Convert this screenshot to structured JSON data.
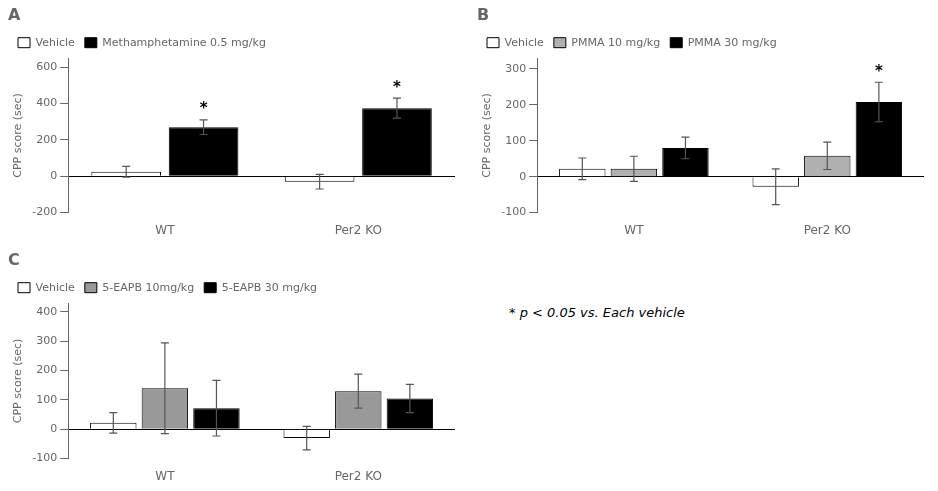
{
  "chart_data": [
    {
      "type": "bar",
      "title": "A",
      "ylabel": "CPP score (sec)",
      "categories": [
        "WT",
        "Per2 KO"
      ],
      "series": [
        {
          "name": "Vehicle",
          "color": "white",
          "values": [
            25,
            -30
          ],
          "errors": [
            30,
            40
          ]
        },
        {
          "name": "Methamphetamine 0.5 mg/kg",
          "color": "black",
          "values": [
            270,
            375
          ],
          "errors": [
            40,
            55
          ]
        }
      ],
      "annotations": [
        {
          "text": "*",
          "series": "Methamphetamine 0.5 mg/kg",
          "category": "WT"
        },
        {
          "text": "*",
          "series": "Methamphetamine 0.5 mg/kg",
          "category": "Per2 KO"
        }
      ],
      "ylim": [
        -200,
        650
      ],
      "yticks": [
        -200,
        0,
        200,
        400,
        600
      ],
      "grid": false,
      "legend": "upper left"
    },
    {
      "type": "bar",
      "title": "B",
      "ylabel": "CPP score (sec)",
      "categories": [
        "WT",
        "Per2 KO"
      ],
      "series": [
        {
          "name": "Vehicle",
          "color": "white",
          "values": [
            22,
            -28
          ],
          "errors": [
            30,
            50
          ]
        },
        {
          "name": "PMMA 10 mg/kg",
          "color": "#b0b0b0",
          "values": [
            22,
            58
          ],
          "errors": [
            35,
            38
          ]
        },
        {
          "name": "PMMA 30 mg/kg",
          "color": "black",
          "values": [
            80,
            208
          ],
          "errors": [
            30,
            55
          ]
        }
      ],
      "annotations": [
        {
          "text": "*",
          "series": "PMMA 30 mg/kg",
          "category": "Per2 KO"
        }
      ],
      "ylim": [
        -100,
        330
      ],
      "yticks": [
        -100,
        0,
        100,
        200,
        300
      ],
      "grid": false,
      "legend": "upper left"
    },
    {
      "type": "bar",
      "title": "C",
      "ylabel": "CPP score (sec)",
      "categories": [
        "WT",
        "Per2 KO"
      ],
      "series": [
        {
          "name": "Vehicle",
          "color": "white",
          "values": [
            22,
            -30
          ],
          "errors": [
            35,
            40
          ]
        },
        {
          "name": "5-EAPB 10mg/kg",
          "color": "#999999",
          "values": [
            140,
            130
          ],
          "errors": [
            155,
            58
          ]
        },
        {
          "name": "5-EAPB 30 mg/kg",
          "color": "black",
          "values": [
            72,
            105
          ],
          "errors": [
            95,
            48
          ]
        }
      ],
      "ylim": [
        -100,
        430
      ],
      "yticks": [
        -100,
        0,
        100,
        200,
        300,
        400
      ],
      "grid": false,
      "legend": "upper left"
    }
  ],
  "annotations": [
    "* p < 0.05 vs. Each vehicle"
  ]
}
